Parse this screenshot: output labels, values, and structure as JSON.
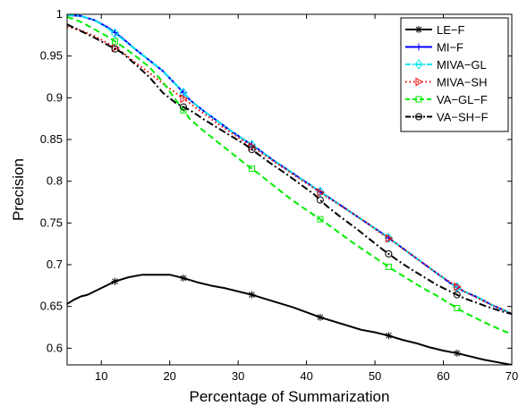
{
  "chart_data": {
    "type": "line",
    "xlabel": "Percentage of Summarization",
    "ylabel": "Precision",
    "xlim": [
      5,
      70
    ],
    "ylim": [
      0.58,
      1.0
    ],
    "xticks": [
      10,
      20,
      30,
      40,
      50,
      60,
      70
    ],
    "yticks": [
      0.6,
      0.65,
      0.7,
      0.75,
      0.8,
      0.85,
      0.9,
      0.95,
      1.0
    ],
    "ytick_labels": [
      "0.6",
      "0.65",
      "0.7",
      "0.75",
      "0.8",
      "0.85",
      "0.9",
      "0.95",
      "1"
    ],
    "grid": false,
    "legend_position": "top-right",
    "series": [
      {
        "name": "LE−F",
        "color": "#000000",
        "marker": "asterisk",
        "dash": "solid",
        "x": [
          5,
          6,
          7,
          8,
          9,
          10,
          12,
          14,
          16,
          18,
          20,
          22,
          24,
          26,
          28,
          30,
          32,
          34,
          36,
          38,
          40,
          42,
          44,
          46,
          48,
          50,
          52,
          54,
          56,
          58,
          60,
          62,
          64,
          66,
          68,
          70
        ],
        "values": [
          0.653,
          0.658,
          0.662,
          0.664,
          0.668,
          0.672,
          0.68,
          0.685,
          0.688,
          0.688,
          0.688,
          0.684,
          0.679,
          0.675,
          0.672,
          0.668,
          0.664,
          0.659,
          0.654,
          0.649,
          0.643,
          0.637,
          0.632,
          0.627,
          0.622,
          0.619,
          0.615,
          0.61,
          0.606,
          0.601,
          0.597,
          0.594,
          0.59,
          0.586,
          0.583,
          0.58
        ],
        "marker_x": [
          12,
          22,
          32,
          42,
          52,
          62
        ]
      },
      {
        "name": "MI−F",
        "color": "#0000ff",
        "marker": "plus",
        "dash": "solid",
        "x": [
          5,
          7,
          9,
          11,
          13,
          15,
          17,
          19,
          21,
          23,
          25,
          27,
          29,
          31,
          33,
          35,
          37,
          39,
          41,
          43,
          45,
          47,
          49,
          51,
          53,
          55,
          57,
          59,
          61,
          63,
          65,
          67,
          69,
          70
        ],
        "values": [
          0.999,
          0.998,
          0.993,
          0.984,
          0.972,
          0.958,
          0.945,
          0.932,
          0.915,
          0.897,
          0.884,
          0.872,
          0.86,
          0.849,
          0.838,
          0.826,
          0.815,
          0.804,
          0.793,
          0.782,
          0.771,
          0.76,
          0.749,
          0.738,
          0.726,
          0.714,
          0.702,
          0.69,
          0.678,
          0.668,
          0.661,
          0.652,
          0.645,
          0.641
        ],
        "marker_x": [
          12,
          22,
          32,
          42,
          52,
          62
        ]
      },
      {
        "name": "MIVA−GL",
        "color": "#00e5ee",
        "marker": "diamond",
        "dash": "dashdot",
        "x": [
          5,
          7,
          9,
          11,
          13,
          15,
          17,
          19,
          21,
          23,
          25,
          27,
          29,
          31,
          33,
          35,
          37,
          39,
          41,
          43,
          45,
          47,
          49,
          51,
          53,
          55,
          57,
          59,
          61,
          63,
          65,
          67,
          69,
          70
        ],
        "values": [
          0.999,
          0.998,
          0.993,
          0.983,
          0.971,
          0.958,
          0.945,
          0.932,
          0.915,
          0.897,
          0.884,
          0.872,
          0.86,
          0.849,
          0.838,
          0.826,
          0.815,
          0.804,
          0.793,
          0.782,
          0.771,
          0.76,
          0.749,
          0.738,
          0.726,
          0.714,
          0.702,
          0.69,
          0.678,
          0.668,
          0.661,
          0.652,
          0.645,
          0.641
        ],
        "marker_x": [
          12,
          22,
          32,
          42,
          52,
          62
        ]
      },
      {
        "name": "MIVA−SH",
        "color": "#ee0000",
        "marker": "triangle-right",
        "dash": "dotted",
        "x": [
          5,
          7,
          9,
          11,
          13,
          15,
          17,
          19,
          21,
          23,
          25,
          27,
          29,
          31,
          33,
          35,
          37,
          39,
          41,
          43,
          45,
          47,
          49,
          51,
          53,
          55,
          57,
          59,
          61,
          63,
          65,
          67,
          69,
          70
        ],
        "values": [
          0.985,
          0.981,
          0.974,
          0.965,
          0.955,
          0.942,
          0.93,
          0.917,
          0.905,
          0.893,
          0.881,
          0.869,
          0.858,
          0.847,
          0.836,
          0.825,
          0.814,
          0.803,
          0.792,
          0.781,
          0.771,
          0.76,
          0.749,
          0.737,
          0.726,
          0.714,
          0.702,
          0.69,
          0.679,
          0.668,
          0.66,
          0.652,
          0.645,
          0.641
        ],
        "marker_x": [
          12,
          22,
          32,
          42,
          52,
          62
        ]
      },
      {
        "name": "VA−GL−F",
        "color": "#00ee00",
        "marker": "square",
        "dash": "dashed",
        "x": [
          5,
          7,
          9,
          11,
          13,
          15,
          17,
          19,
          21,
          23,
          25,
          27,
          29,
          31,
          33,
          35,
          37,
          39,
          41,
          43,
          45,
          47,
          49,
          51,
          53,
          55,
          57,
          59,
          61,
          63,
          65,
          67,
          69,
          70
        ],
        "values": [
          0.997,
          0.991,
          0.982,
          0.973,
          0.962,
          0.95,
          0.937,
          0.919,
          0.896,
          0.874,
          0.86,
          0.847,
          0.834,
          0.821,
          0.809,
          0.796,
          0.783,
          0.771,
          0.76,
          0.749,
          0.737,
          0.725,
          0.714,
          0.703,
          0.692,
          0.682,
          0.672,
          0.663,
          0.653,
          0.643,
          0.635,
          0.627,
          0.62,
          0.617
        ],
        "marker_x": [
          12,
          22,
          32,
          42,
          52,
          62
        ]
      },
      {
        "name": "VA−SH−F",
        "color": "#000000",
        "marker": "circle",
        "dash": "dashdot",
        "x": [
          5,
          7,
          9,
          11,
          13,
          15,
          17,
          19,
          21,
          23,
          25,
          27,
          29,
          31,
          33,
          35,
          37,
          39,
          41,
          43,
          45,
          47,
          49,
          51,
          53,
          55,
          57,
          59,
          61,
          63,
          65,
          67,
          69,
          70
        ],
        "values": [
          0.988,
          0.98,
          0.972,
          0.963,
          0.954,
          0.94,
          0.925,
          0.906,
          0.893,
          0.885,
          0.874,
          0.864,
          0.854,
          0.844,
          0.832,
          0.82,
          0.809,
          0.797,
          0.785,
          0.77,
          0.757,
          0.745,
          0.732,
          0.719,
          0.707,
          0.696,
          0.686,
          0.676,
          0.668,
          0.66,
          0.654,
          0.648,
          0.643,
          0.641
        ],
        "marker_x": [
          12,
          22,
          32,
          42,
          52,
          62
        ]
      }
    ]
  }
}
